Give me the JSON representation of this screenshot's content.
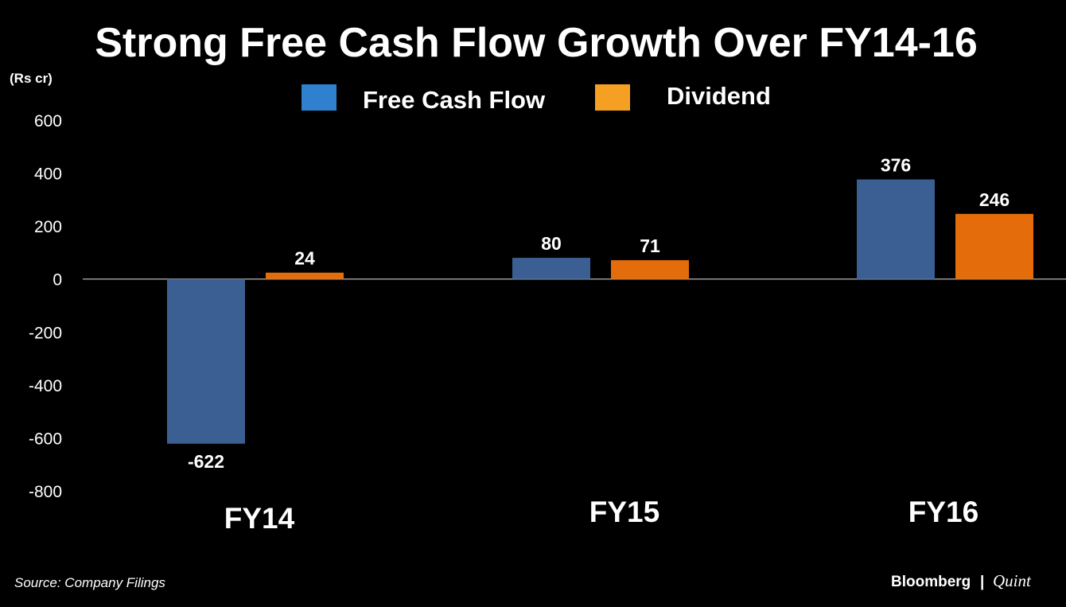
{
  "chart_data": {
    "type": "bar",
    "title": "Strong Free Cash Flow Growth Over FY14-16",
    "ylabel": "(Rs cr)",
    "xlabel": "",
    "categories": [
      "FY14",
      "FY15",
      "FY16"
    ],
    "series": [
      {
        "name": "Free Cash Flow",
        "color": "#3b5f92",
        "values": [
          -622,
          80,
          376
        ],
        "labels": [
          "-622",
          "80",
          "376"
        ]
      },
      {
        "name": "Dividend",
        "color": "#e46c0a",
        "values": [
          24,
          71,
          246
        ],
        "labels": [
          "24",
          "71",
          "246"
        ]
      }
    ],
    "legend_colors": [
      "#2f80cf",
      "#f5a023"
    ],
    "ylim": [
      -800,
      600
    ],
    "yticks": [
      600,
      400,
      200,
      0,
      -200,
      -400,
      -600,
      -800
    ],
    "ytick_labels": [
      "600",
      "400",
      "200",
      "0",
      "-200",
      "-400",
      "-600",
      "-800"
    ],
    "grid": false,
    "legend_position": "top-center"
  },
  "source": "Source: Company Filings",
  "brand": {
    "name": "Bloomberg",
    "separator": "|",
    "suffix": "Quint"
  }
}
